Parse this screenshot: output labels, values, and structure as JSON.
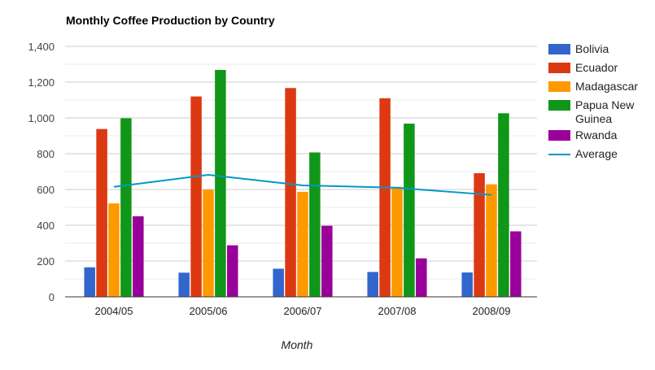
{
  "chart_data": {
    "type": "bar",
    "title": "Monthly Coffee Production by Country",
    "xlabel": "Month",
    "ylabel": "",
    "ylim": [
      0,
      1400
    ],
    "yticks": [
      "0",
      "200",
      "400",
      "600",
      "800",
      "1,000",
      "1,200",
      "1,400"
    ],
    "categories": [
      "2004/05",
      "2005/06",
      "2006/07",
      "2007/08",
      "2008/09"
    ],
    "series": [
      {
        "name": "Bolivia",
        "color": "#3366cc",
        "values": [
          165,
          135,
          157,
          139,
          136
        ]
      },
      {
        "name": "Ecuador",
        "color": "#dc3912",
        "values": [
          938,
          1120,
          1167,
          1110,
          691
        ]
      },
      {
        "name": "Madagascar",
        "color": "#ff9900",
        "values": [
          522,
          599,
          587,
          615,
          629
        ]
      },
      {
        "name": "Papua New Guinea",
        "color": "#109618",
        "values": [
          998,
          1268,
          807,
          968,
          1026
        ]
      },
      {
        "name": "Rwanda",
        "color": "#990099",
        "values": [
          450,
          288,
          397,
          215,
          366
        ]
      }
    ],
    "line_series": {
      "name": "Average",
      "type": "line",
      "color": "#0099c6",
      "values": [
        614.6,
        682,
        623,
        609.4,
        569.6
      ]
    },
    "grid": true,
    "legend_position": "right"
  }
}
